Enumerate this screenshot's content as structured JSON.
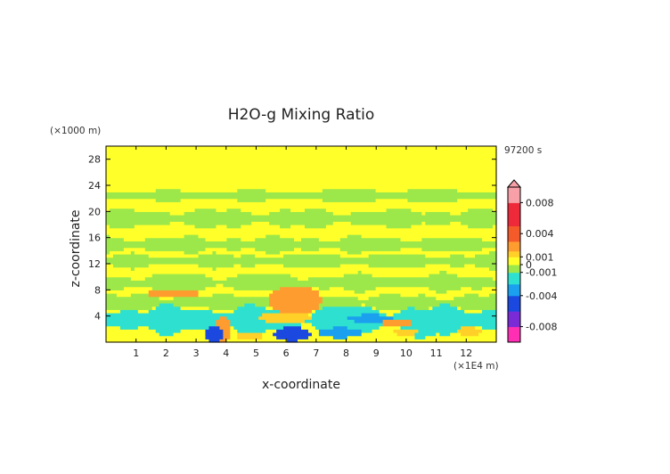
{
  "chart_data": {
    "type": "heatmap",
    "title": "H2O-g Mixing Ratio",
    "xlabel": "x-coordinate",
    "ylabel": "z-coordinate",
    "x_unit": "(×1E4 m)",
    "y_unit": "(×1000 m)",
    "time_label": "97200 s",
    "xlim": [
      0,
      13
    ],
    "ylim": [
      0,
      30
    ],
    "x_ticks": [
      "1",
      "2",
      "3",
      "4",
      "5",
      "6",
      "7",
      "8",
      "9",
      "10",
      "11",
      "12"
    ],
    "y_ticks": [
      "4",
      "8",
      "12",
      "16",
      "20",
      "24",
      "28"
    ],
    "colorbar": {
      "range": [
        -0.01,
        0.01
      ],
      "labels": [
        "0.008",
        "0.004",
        "0.001",
        "0",
        "-0.001",
        "-0.004",
        "-0.008"
      ],
      "colors": {
        "neg_extreme": "#ff2fb4",
        "neg_strong": "#7a2bd6",
        "neg_mid": "#1b49e0",
        "neg_weak": "#1aa0ee",
        "neg_small": "#2ee0d0",
        "near_zero_neg": "#9ce84a",
        "near_zero_pos": "#ffff2a",
        "pos_small": "#ffd128",
        "pos_weak": "#ff9c30",
        "pos_mid": "#f55a2a",
        "pos_strong": "#ee2a3a",
        "pos_extreme": "#f8a0a8"
      }
    },
    "background_value": 0.0002,
    "features": [
      {
        "kind": "band",
        "x_start": 0,
        "x_end": 13,
        "z_center": 22.5,
        "z_half": 0.7,
        "value": -0.0003
      },
      {
        "kind": "band",
        "x_start": 0,
        "x_end": 13,
        "z_center": 19.0,
        "z_half": 1.1,
        "value": -0.0003
      },
      {
        "kind": "band",
        "x_start": 0,
        "x_end": 13,
        "z_center": 15.0,
        "z_half": 0.9,
        "value": -0.0003
      },
      {
        "kind": "band",
        "x_start": 0,
        "x_end": 13,
        "z_center": 12.5,
        "z_half": 0.8,
        "value": -0.0003
      },
      {
        "kind": "band",
        "x_start": 0,
        "x_end": 13,
        "z_center": 9.2,
        "z_half": 1.0,
        "value": -0.0003
      },
      {
        "kind": "band",
        "x_start": 0,
        "x_end": 13,
        "z_center": 6.2,
        "z_half": 0.9,
        "value": -0.0003
      },
      {
        "kind": "band",
        "x_start": 0,
        "x_end": 13,
        "z_center": 3.5,
        "z_half": 1.6,
        "value": -0.0015
      },
      {
        "kind": "band",
        "x_start": 0,
        "x_end": 13,
        "z_center": 0.6,
        "z_half": 0.6,
        "value": 0.0008
      },
      {
        "kind": "blob",
        "x": 2.2,
        "z": 7.5,
        "rx": 0.9,
        "rz": 0.7,
        "value": 0.002
      },
      {
        "kind": "blob",
        "x": 6.3,
        "z": 6.5,
        "rx": 0.9,
        "rz": 2.2,
        "value": 0.0025
      },
      {
        "kind": "blob",
        "x": 6.0,
        "z": 3.8,
        "rx": 0.9,
        "rz": 0.8,
        "value": 0.0015
      },
      {
        "kind": "blob",
        "x": 3.9,
        "z": 2.0,
        "rx": 0.25,
        "rz": 2.0,
        "value": 0.002
      },
      {
        "kind": "blob",
        "x": 3.6,
        "z": 1.2,
        "rx": 0.3,
        "rz": 1.2,
        "value": -0.0045
      },
      {
        "kind": "blob",
        "x": 6.2,
        "z": 1.3,
        "rx": 0.6,
        "rz": 1.1,
        "value": -0.004
      },
      {
        "kind": "blob",
        "x": 7.8,
        "z": 1.5,
        "rx": 0.8,
        "rz": 0.8,
        "value": -0.003
      },
      {
        "kind": "blob",
        "x": 8.8,
        "z": 3.7,
        "rx": 0.8,
        "rz": 0.6,
        "value": -0.003
      },
      {
        "kind": "blob",
        "x": 10.5,
        "z": 1.5,
        "rx": 0.5,
        "rz": 0.8,
        "value": -0.002
      },
      {
        "kind": "blob",
        "x": 9.7,
        "z": 3.0,
        "rx": 0.5,
        "rz": 0.5,
        "value": 0.002
      },
      {
        "kind": "blob",
        "x": 10.0,
        "z": 1.6,
        "rx": 0.4,
        "rz": 0.6,
        "value": 0.0015
      },
      {
        "kind": "blob",
        "x": 12.1,
        "z": 1.7,
        "rx": 0.4,
        "rz": 0.7,
        "value": 0.0015
      },
      {
        "kind": "blob",
        "x": 4.8,
        "z": 1.0,
        "rx": 0.5,
        "rz": 0.6,
        "value": 0.0012
      }
    ]
  }
}
